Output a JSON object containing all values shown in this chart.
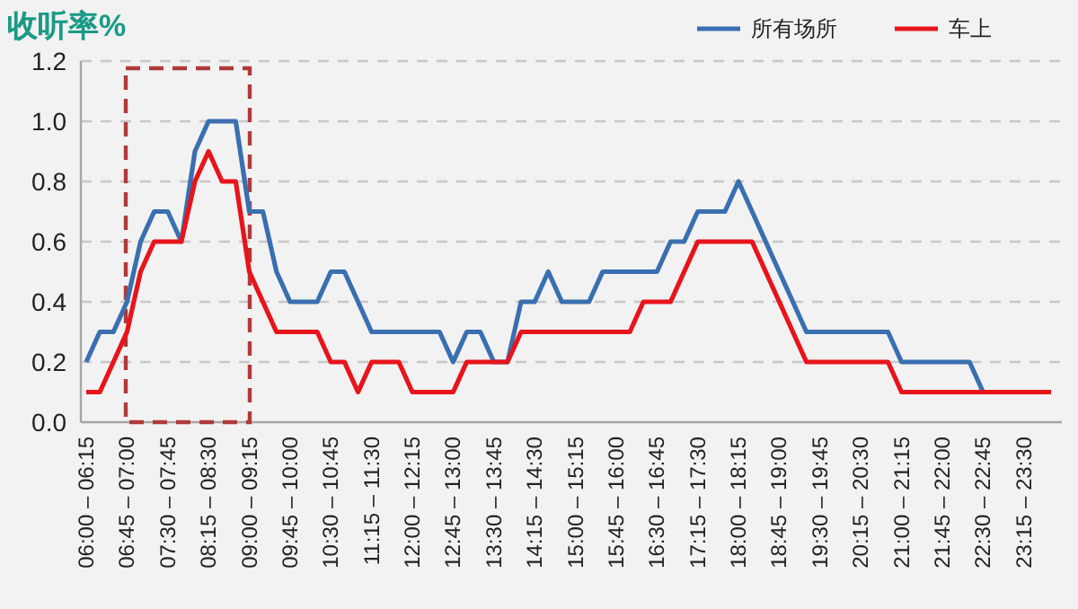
{
  "chart_data": {
    "type": "line",
    "title": "收听率%",
    "categories": [
      "06:00 – 06:15",
      null,
      null,
      "06:45 – 07:00",
      null,
      null,
      "07:30 – 07:45",
      null,
      null,
      "08:15 – 08:30",
      null,
      null,
      "09:00 – 09:15",
      null,
      null,
      "09:45 – 10:00",
      null,
      null,
      "10:30 – 10:45",
      null,
      null,
      "11:15 – 11:30",
      null,
      null,
      "12:00 – 12:15",
      null,
      null,
      "12:45 – 13:00",
      null,
      null,
      "13:30 – 13:45",
      null,
      null,
      "14:15 – 14:30",
      null,
      null,
      "15:00 – 15:15",
      null,
      null,
      "15:45 – 16:00",
      null,
      null,
      "16:30 – 16:45",
      null,
      null,
      "17:15 – 17:30",
      null,
      null,
      "18:00 – 18:15",
      null,
      null,
      "18:45 – 19:00",
      null,
      null,
      "19:30 – 19:45",
      null,
      null,
      "20:15 – 20:30",
      null,
      null,
      "21:00 – 21:15",
      null,
      null,
      "21:45 – 22:00",
      null,
      null,
      "22:30 – 22:45",
      null,
      null,
      "23:15 – 23:30",
      null,
      null
    ],
    "series": [
      {
        "name": "所有场所",
        "color": "#3a6fb0",
        "values": [
          0.2,
          0.3,
          0.3,
          0.4,
          0.6,
          0.7,
          0.7,
          0.6,
          0.9,
          1.0,
          1.0,
          1.0,
          0.7,
          0.7,
          0.5,
          0.4,
          0.4,
          0.4,
          0.5,
          0.5,
          0.4,
          0.3,
          0.3,
          0.3,
          0.3,
          0.3,
          0.3,
          0.2,
          0.3,
          0.3,
          0.2,
          0.2,
          0.4,
          0.4,
          0.5,
          0.4,
          0.4,
          0.4,
          0.5,
          0.5,
          0.5,
          0.5,
          0.5,
          0.6,
          0.6,
          0.7,
          0.7,
          0.7,
          0.8,
          0.7,
          0.6,
          0.5,
          0.4,
          0.3,
          0.3,
          0.3,
          0.3,
          0.3,
          0.3,
          0.3,
          0.2,
          0.2,
          0.2,
          0.2,
          0.2,
          0.2,
          0.1,
          null,
          null,
          null,
          null,
          null
        ]
      },
      {
        "name": "车上",
        "color": "#e8141b",
        "values": [
          0.1,
          0.1,
          0.2,
          0.3,
          0.5,
          0.6,
          0.6,
          0.6,
          0.8,
          0.9,
          0.8,
          0.8,
          0.5,
          0.4,
          0.3,
          0.3,
          0.3,
          0.3,
          0.2,
          0.2,
          0.1,
          0.2,
          0.2,
          0.2,
          0.1,
          0.1,
          0.1,
          0.1,
          0.2,
          0.2,
          0.2,
          0.2,
          0.3,
          0.3,
          0.3,
          0.3,
          0.3,
          0.3,
          0.3,
          0.3,
          0.3,
          0.4,
          0.4,
          0.4,
          0.5,
          0.6,
          0.6,
          0.6,
          0.6,
          0.6,
          0.5,
          0.4,
          0.3,
          0.2,
          0.2,
          0.2,
          0.2,
          0.2,
          0.2,
          0.2,
          0.1,
          0.1,
          0.1,
          0.1,
          0.1,
          0.1,
          0.1,
          0.1,
          0.1,
          0.1,
          0.1,
          0.1
        ]
      }
    ],
    "ylim": [
      0,
      1.2
    ],
    "yticks": [
      {
        "value": 0,
        "label": "0.0"
      },
      {
        "value": 0.2,
        "label": "0.2"
      },
      {
        "value": 0.4,
        "label": "0.4"
      },
      {
        "value": 0.6,
        "label": "0.6"
      },
      {
        "value": 0.8,
        "label": "0.8"
      },
      {
        "value": 1,
        "label": "1.0"
      },
      {
        "value": 1.2,
        "label": "1.2"
      }
    ],
    "grid": "y",
    "legend": "top right"
  }
}
